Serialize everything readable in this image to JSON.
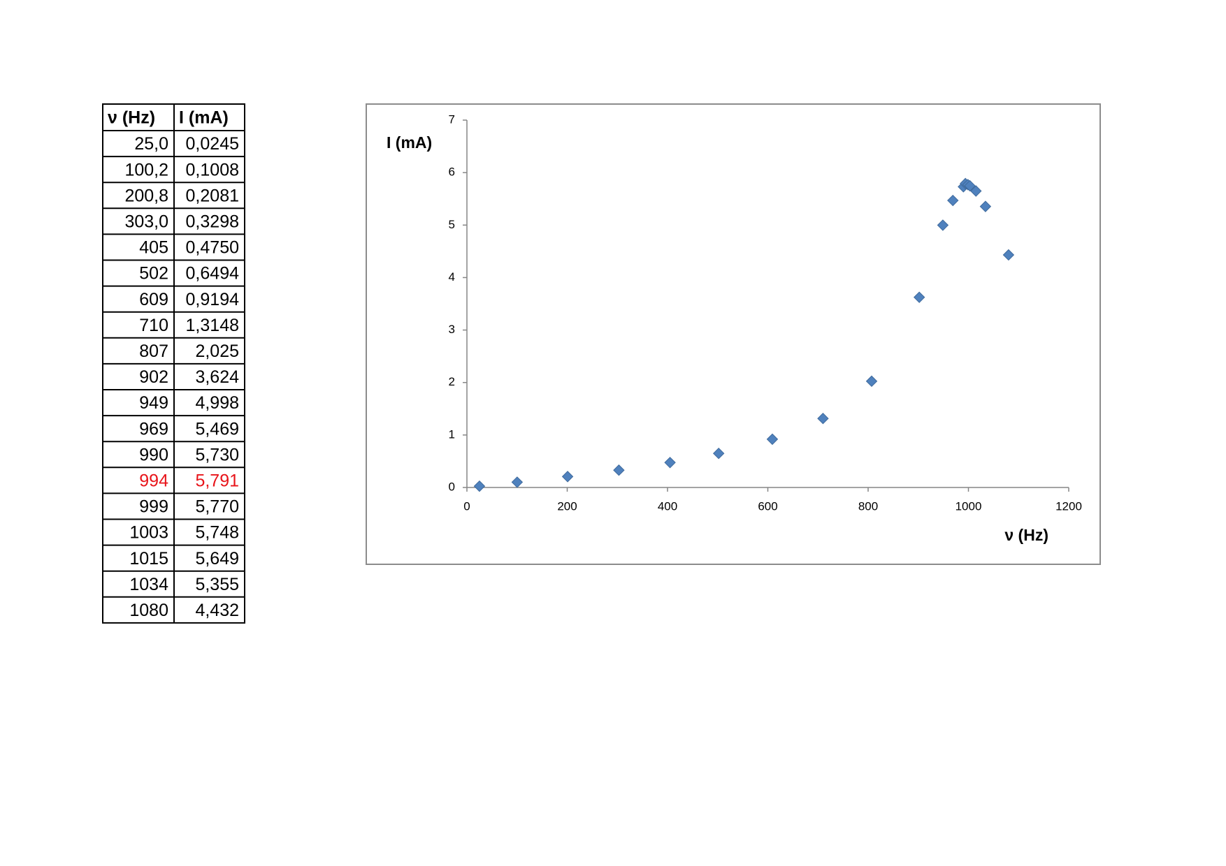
{
  "table": {
    "header": [
      "ν (Hz)",
      "I (mA)"
    ],
    "rows": [
      [
        "25,0",
        "0,0245"
      ],
      [
        "100,2",
        "0,1008"
      ],
      [
        "200,8",
        "0,2081"
      ],
      [
        "303,0",
        "0,3298"
      ],
      [
        "405",
        "0,4750"
      ],
      [
        "502",
        "0,6494"
      ],
      [
        "609",
        "0,9194"
      ],
      [
        "710",
        "1,3148"
      ],
      [
        "807",
        "2,025"
      ],
      [
        "902",
        "3,624"
      ],
      [
        "949",
        "4,998"
      ],
      [
        "969",
        "5,469"
      ],
      [
        "990",
        "5,730"
      ],
      [
        "994",
        "5,791"
      ],
      [
        "999",
        "5,770"
      ],
      [
        "1003",
        "5,748"
      ],
      [
        "1015",
        "5,649"
      ],
      [
        "1034",
        "5,355"
      ],
      [
        "1080",
        "4,432"
      ]
    ],
    "highlight_row": 13,
    "highlight_color": "#e8141a"
  },
  "chart_data": {
    "type": "scatter",
    "xlabel": "ν (Hz)",
    "ylabel": "I (mA)",
    "x": [
      25.0,
      100.2,
      200.8,
      303.0,
      405,
      502,
      609,
      710,
      807,
      902,
      949,
      969,
      990,
      994,
      999,
      1003,
      1015,
      1034,
      1080
    ],
    "values": [
      0.0245,
      0.1008,
      0.2081,
      0.3298,
      0.475,
      0.6494,
      0.9194,
      1.3148,
      2.025,
      3.624,
      4.998,
      5.469,
      5.73,
      5.791,
      5.77,
      5.748,
      5.649,
      5.355,
      4.432
    ],
    "color": "#4f81bd",
    "xlim": [
      0,
      1200
    ],
    "xticks": [
      0,
      200,
      400,
      600,
      800,
      1000,
      1200
    ],
    "ylim": [
      0,
      7
    ],
    "yticks": [
      0,
      1,
      2,
      3,
      4,
      5,
      6,
      7
    ]
  }
}
